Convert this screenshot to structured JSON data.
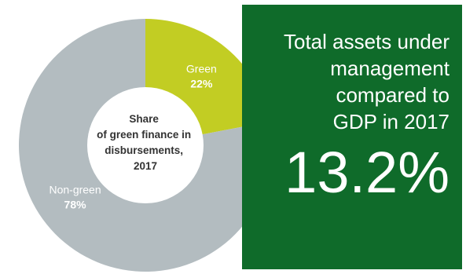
{
  "chart_data": {
    "type": "pie",
    "donut": true,
    "categories": [
      "Green",
      "Non-green"
    ],
    "values": [
      22,
      78
    ],
    "value_labels": [
      "22%",
      "78%"
    ],
    "colors": [
      "#c2cd23",
      "#b3bcc0"
    ],
    "center_label": [
      "Share",
      "of green finance in",
      "disbursements,",
      "2017"
    ]
  },
  "stat_box": {
    "caption_lines": [
      "Total assets under",
      "management",
      "compared to",
      "GDP in 2017"
    ],
    "value": "13.2%",
    "background": "#0f6b2a"
  }
}
